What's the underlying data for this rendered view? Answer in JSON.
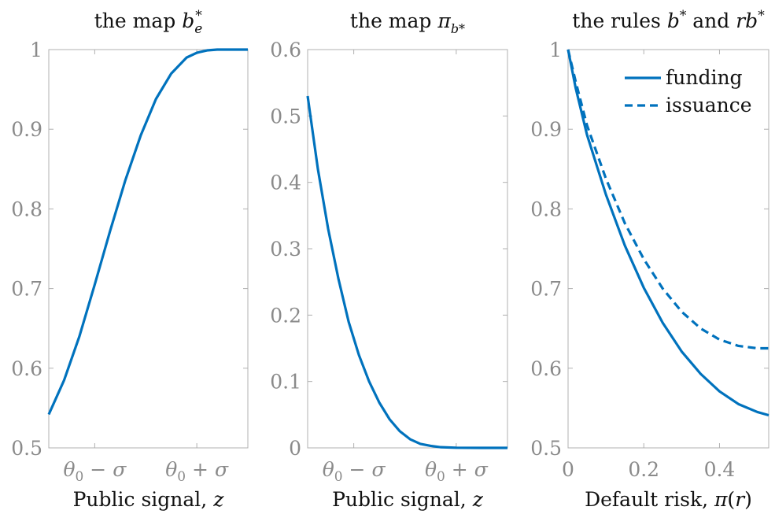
{
  "accent_color": "#0072BD",
  "chart_data": [
    {
      "type": "line",
      "title": "the map b*_e",
      "title_parts": [
        "the map ",
        "b",
        "e",
        "*"
      ],
      "xlabel": "Public signal, z",
      "ylabel": "",
      "x_axis_kind": "symbolic",
      "xlim": [
        -1.9,
        2.0
      ],
      "ylim": [
        0.5,
        1.0
      ],
      "x_ticks": [
        {
          "value": -1,
          "label": "θ₀ − σ"
        },
        {
          "value": 1,
          "label": "θ₀ + σ"
        }
      ],
      "y_ticks": [
        {
          "value": 0.5,
          "label": "0.5"
        },
        {
          "value": 0.6,
          "label": "0.6"
        },
        {
          "value": 0.7,
          "label": "0.7"
        },
        {
          "value": 0.8,
          "label": "0.8"
        },
        {
          "value": 0.9,
          "label": "0.9"
        },
        {
          "value": 1.0,
          "label": "1"
        }
      ],
      "grid": false,
      "series": [
        {
          "style": "solid",
          "color": "#0072BD",
          "x": [
            -1.9,
            -1.6,
            -1.3,
            -1.0,
            -0.7,
            -0.4,
            -0.1,
            0.2,
            0.5,
            0.8,
            1.0,
            1.2,
            1.4,
            1.6,
            1.8,
            2.0
          ],
          "y": [
            0.542,
            0.585,
            0.64,
            0.705,
            0.772,
            0.836,
            0.892,
            0.938,
            0.97,
            0.99,
            0.996,
            0.999,
            1.0,
            1.0,
            1.0,
            1.0
          ]
        }
      ]
    },
    {
      "type": "line",
      "title": "the map π_b*",
      "title_parts": [
        "the map ",
        "π",
        "b*"
      ],
      "xlabel": "Public signal, z",
      "ylabel": "",
      "x_axis_kind": "symbolic",
      "xlim": [
        -1.9,
        2.0
      ],
      "ylim": [
        0,
        0.6
      ],
      "x_ticks": [
        {
          "value": -1,
          "label": "θ₀ − σ"
        },
        {
          "value": 1,
          "label": "θ₀ + σ"
        }
      ],
      "y_ticks": [
        {
          "value": 0,
          "label": "0"
        },
        {
          "value": 0.1,
          "label": "0.1"
        },
        {
          "value": 0.2,
          "label": "0.2"
        },
        {
          "value": 0.3,
          "label": "0.3"
        },
        {
          "value": 0.4,
          "label": "0.4"
        },
        {
          "value": 0.5,
          "label": "0.5"
        },
        {
          "value": 0.6,
          "label": "0.6"
        }
      ],
      "grid": false,
      "series": [
        {
          "style": "solid",
          "color": "#0072BD",
          "x": [
            -1.9,
            -1.7,
            -1.5,
            -1.3,
            -1.1,
            -0.9,
            -0.7,
            -0.5,
            -0.3,
            -0.1,
            0.1,
            0.3,
            0.5,
            0.7,
            1.0,
            1.5,
            2.0
          ],
          "y": [
            0.53,
            0.42,
            0.33,
            0.255,
            0.19,
            0.14,
            0.1,
            0.068,
            0.043,
            0.025,
            0.013,
            0.006,
            0.003,
            0.001,
            0.0002,
            0.0,
            0.0
          ]
        }
      ]
    },
    {
      "type": "line",
      "title": "the rules b* and rb*",
      "title_parts": [
        "the rules ",
        "b",
        "*",
        " and ",
        "rb",
        "*"
      ],
      "xlabel": "Default risk, π(r)",
      "xlabel_parts": [
        "Default risk, ",
        "π",
        "(",
        "r",
        ")"
      ],
      "ylabel": "",
      "x_axis_kind": "numeric",
      "xlim": [
        0,
        0.53
      ],
      "ylim": [
        0.5,
        1.0
      ],
      "x_ticks": [
        {
          "value": 0,
          "label": "0"
        },
        {
          "value": 0.2,
          "label": "0.2"
        },
        {
          "value": 0.4,
          "label": "0.4"
        }
      ],
      "y_ticks": [
        {
          "value": 0.5,
          "label": "0.5"
        },
        {
          "value": 0.6,
          "label": "0.6"
        },
        {
          "value": 0.7,
          "label": "0.7"
        },
        {
          "value": 0.8,
          "label": "0.8"
        },
        {
          "value": 0.9,
          "label": "0.9"
        },
        {
          "value": 1.0,
          "label": "1"
        }
      ],
      "grid": false,
      "legend_position": "top-right",
      "series": [
        {
          "name": "funding",
          "style": "solid",
          "color": "#0072BD",
          "x": [
            0,
            0.02,
            0.05,
            0.1,
            0.15,
            0.2,
            0.25,
            0.3,
            0.35,
            0.4,
            0.45,
            0.5,
            0.53
          ],
          "y": [
            1.0,
            0.952,
            0.893,
            0.818,
            0.754,
            0.701,
            0.657,
            0.621,
            0.593,
            0.571,
            0.555,
            0.545,
            0.541
          ]
        },
        {
          "name": "issuance",
          "style": "dashed",
          "color": "#0072BD",
          "x": [
            0,
            0.02,
            0.05,
            0.1,
            0.15,
            0.2,
            0.25,
            0.3,
            0.35,
            0.4,
            0.45,
            0.5,
            0.53
          ],
          "y": [
            1.0,
            0.96,
            0.905,
            0.838,
            0.782,
            0.737,
            0.7,
            0.671,
            0.65,
            0.636,
            0.628,
            0.625,
            0.625
          ]
        }
      ]
    }
  ]
}
